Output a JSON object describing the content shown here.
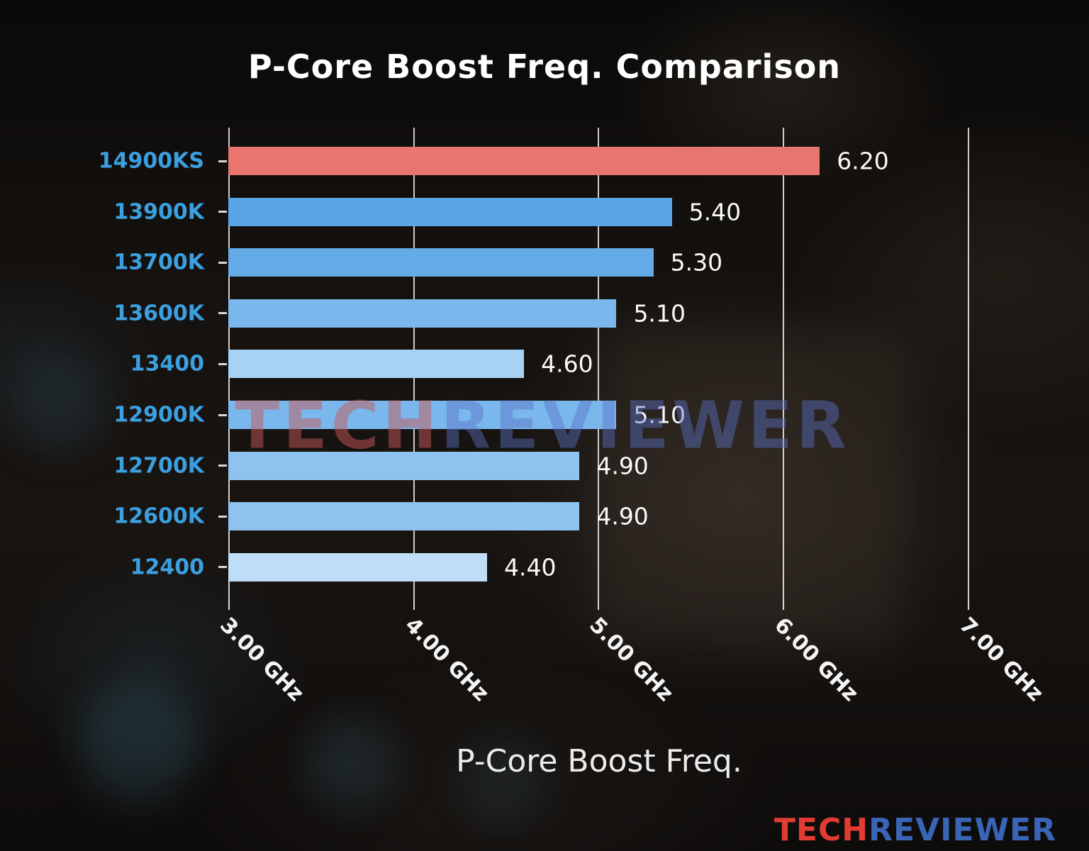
{
  "chart_data": {
    "type": "bar",
    "orientation": "horizontal",
    "title": "P-Core Boost Freq. Comparison",
    "xlabel": "P-Core Boost Freq.",
    "ylabel": "",
    "categories": [
      "14900KS",
      "13900K",
      "13700K",
      "13600K",
      "13400",
      "12900K",
      "12700K",
      "12600K",
      "12400"
    ],
    "values": [
      6.2,
      5.4,
      5.3,
      5.1,
      4.6,
      5.1,
      4.9,
      4.9,
      4.4
    ],
    "value_labels": [
      "6.20",
      "5.40",
      "5.30",
      "5.10",
      "4.60",
      "5.10",
      "4.90",
      "4.90",
      "4.40"
    ],
    "bar_colors": [
      "#e8766f",
      "#5ba4e5",
      "#65abe8",
      "#7ab7ec",
      "#a8d2f4",
      "#7ab7ec",
      "#8fc3ef",
      "#8fc3ef",
      "#c0ddf8"
    ],
    "highlight_index": 0,
    "unit": "GHz",
    "xlim": [
      3.0,
      7.37
    ],
    "xticks": [
      3,
      4,
      5,
      6,
      7
    ],
    "xtick_labels": [
      "3.00 GHz",
      "4.00 GHz",
      "5.00 GHz",
      "6.00 GHz",
      "7.00 GHz"
    ],
    "grid": "vertical",
    "legend": "none"
  },
  "watermark": {
    "part1": "TECH",
    "part2": "REVIEWER"
  },
  "logo": {
    "part1": "TECH",
    "part2": "REVIEWER"
  },
  "colors": {
    "category_label": "#3b9fe0",
    "value_label": "#fafafa",
    "tick_label": "#f4f4f4",
    "gridline": "#eeeeee",
    "highlight_bar": "#e8766f",
    "logo_red": "#e23b34",
    "logo_blue": "#3a64b5",
    "background": "#0d0b0a"
  }
}
